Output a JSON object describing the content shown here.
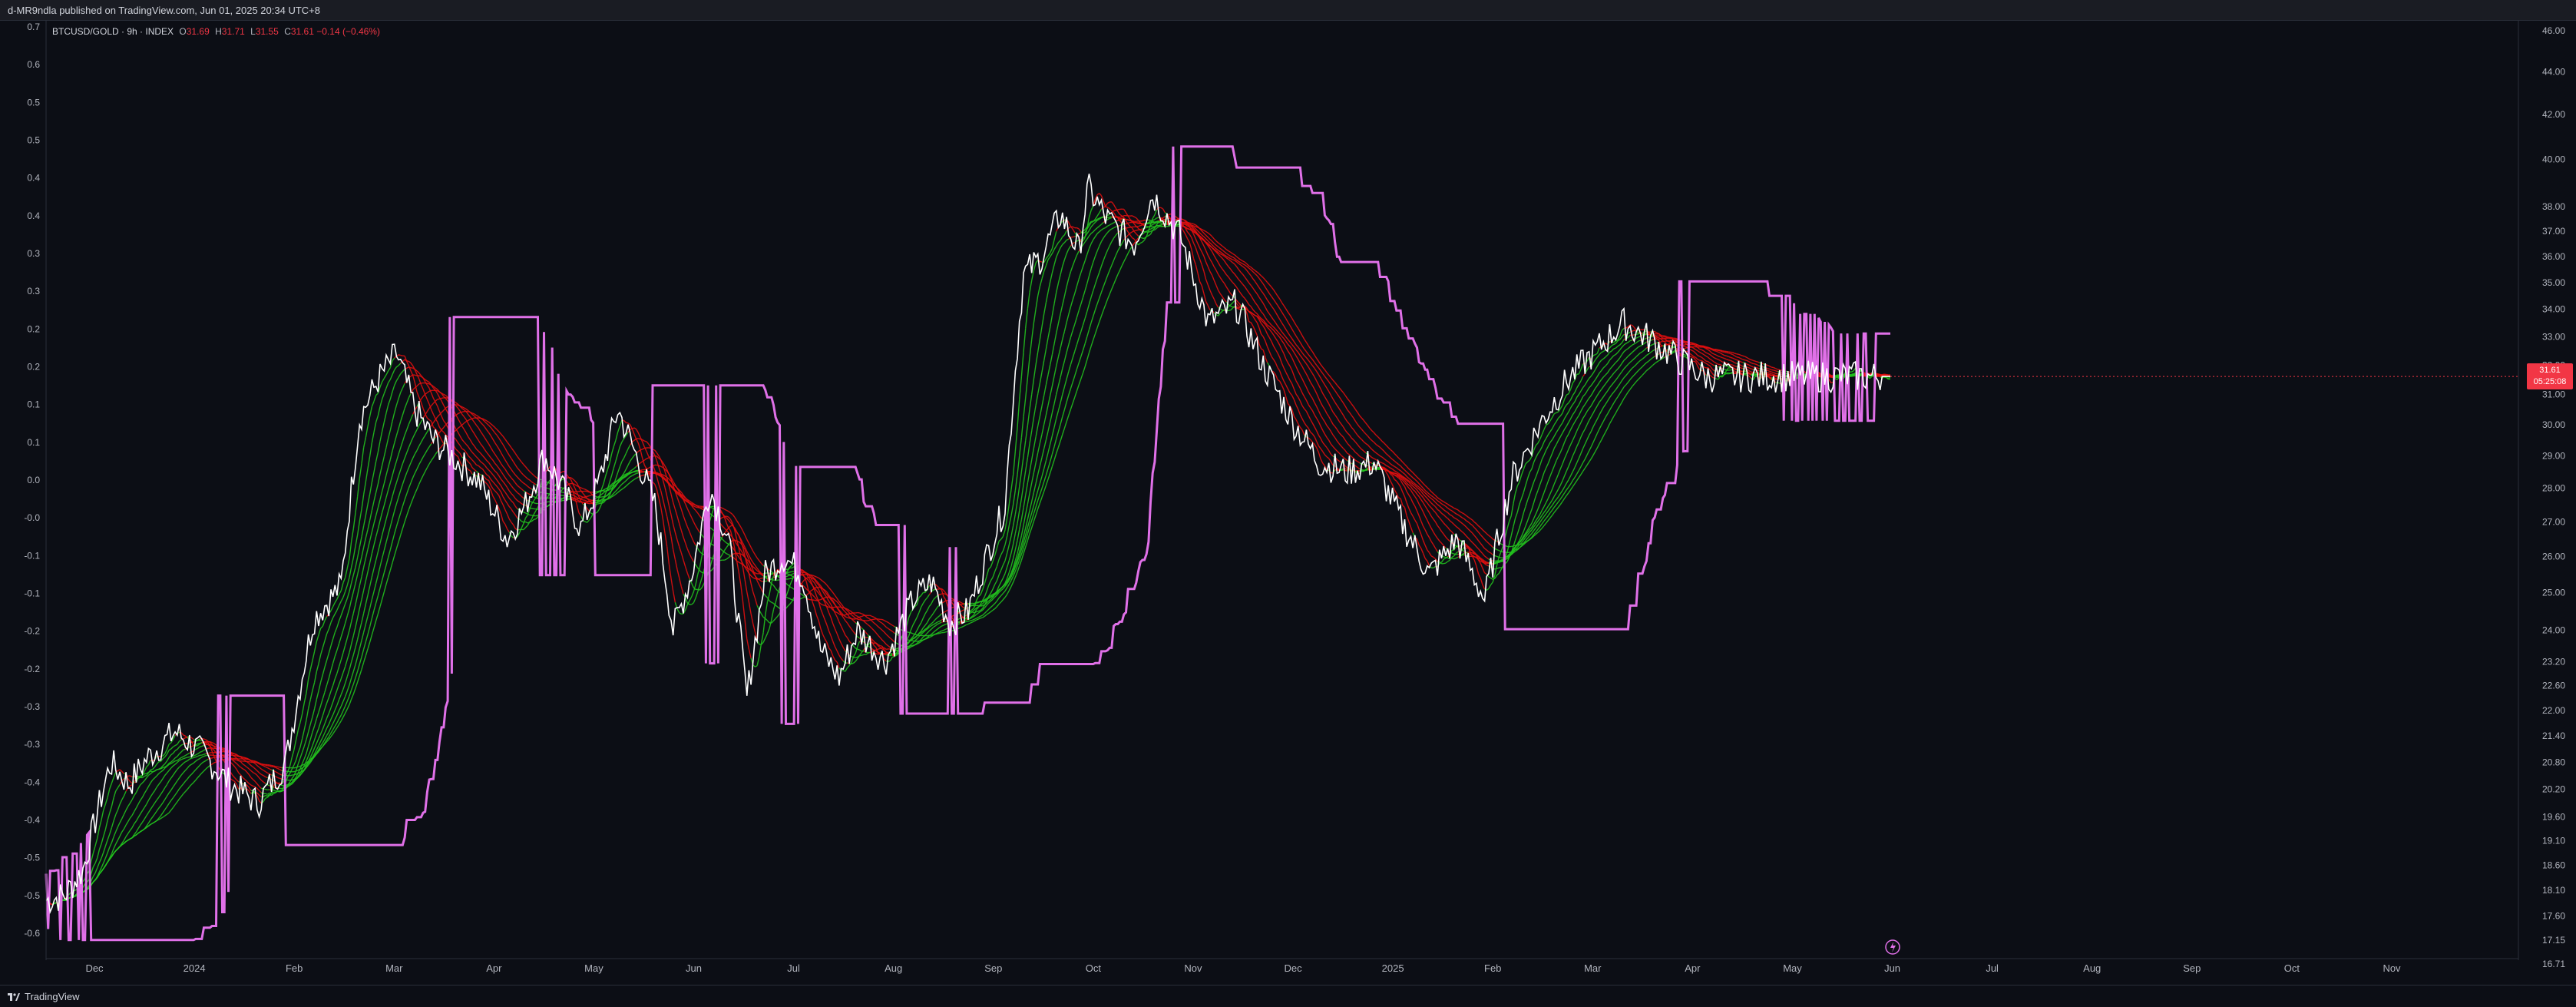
{
  "header": {
    "published": "d-MR9ndla published on TradingView.com, Jun 01, 2025 20:34 UTC+8"
  },
  "legend": {
    "symbol": "BTCUSD/GOLD · 9h · INDEX",
    "open_label": "O",
    "open": "31.69",
    "high_label": "H",
    "high": "31.71",
    "low_label": "L",
    "low": "31.55",
    "close_label": "C",
    "close": "31.61",
    "change": "−0.14 (−0.46%)"
  },
  "price_tag": {
    "price": "31.61",
    "countdown": "05:25:08"
  },
  "footer": {
    "brand": "TradingView"
  },
  "colors": {
    "background": "#0c0e15",
    "up": "#22c01e",
    "down": "#e01010",
    "price": "#ffffff",
    "band": "#e070e8",
    "tag": "#f23645"
  },
  "chart_data": {
    "type": "line",
    "title": "BTCUSD/GOLD · 9h · INDEX",
    "x_ticks": [
      "Dec",
      "2024",
      "Feb",
      "Mar",
      "Apr",
      "May",
      "Jun",
      "Jul",
      "Aug",
      "Sep",
      "Oct",
      "Nov",
      "Dec",
      "2025",
      "Feb",
      "Mar",
      "Apr",
      "May",
      "Jun",
      "Jul",
      "Aug",
      "Sep",
      "Oct",
      "Nov"
    ],
    "left_axis_ticks": [
      "0.7",
      "0.6",
      "0.5",
      "0.5",
      "0.4",
      "0.4",
      "0.3",
      "0.3",
      "0.2",
      "0.2",
      "0.1",
      "0.1",
      "0.0",
      "-0.0",
      "-0.1",
      "-0.1",
      "-0.2",
      "-0.2",
      "-0.3",
      "-0.3",
      "-0.4",
      "-0.4",
      "-0.5",
      "-0.5",
      "-0.6"
    ],
    "right_axis_ticks": [
      "46.00",
      "44.00",
      "42.00",
      "40.00",
      "38.00",
      "37.00",
      "36.00",
      "35.00",
      "34.00",
      "33.00",
      "32.00",
      "31.00",
      "30.00",
      "29.00",
      "28.00",
      "27.00",
      "26.00",
      "25.00",
      "24.00",
      "23.20",
      "22.60",
      "22.00",
      "21.40",
      "20.80",
      "20.20",
      "19.60",
      "19.10",
      "18.60",
      "18.10",
      "17.60",
      "17.15",
      "16.71"
    ],
    "log_scale": true,
    "grid": false,
    "series": [
      {
        "kind": "price",
        "x": [
          0,
          0.01,
          0.02,
          0.035,
          0.045,
          0.055,
          0.07,
          0.085,
          0.1,
          0.115,
          0.13,
          0.145,
          0.16,
          0.17,
          0.18,
          0.19,
          0.2,
          0.21,
          0.22,
          0.235,
          0.25,
          0.26,
          0.27,
          0.28,
          0.29,
          0.3,
          0.31,
          0.32,
          0.33,
          0.34,
          0.35,
          0.36,
          0.37,
          0.38,
          0.39,
          0.4,
          0.41,
          0.42,
          0.43,
          0.44,
          0.455,
          0.47,
          0.48,
          0.49,
          0.5,
          0.51,
          0.52,
          0.53,
          0.54,
          0.55,
          0.56,
          0.565,
          0.575,
          0.59,
          0.6,
          0.615,
          0.63,
          0.645,
          0.66,
          0.675,
          0.69,
          0.705,
          0.72,
          0.735,
          0.75,
          0.765,
          0.78,
          0.795,
          0.81,
          0.825,
          0.84,
          0.855,
          0.87,
          0.885,
          0.9,
          0.915,
          0.93,
          0.945,
          0.96,
          0.975,
          0.99,
          1.0
        ],
        "y": [
          17.9,
          18.0,
          18.5,
          20.8,
          20.3,
          20.9,
          21.5,
          21.0,
          20.3,
          19.9,
          20.8,
          24.3,
          25.2,
          30.2,
          31.5,
          32.4,
          30.5,
          29.5,
          29.0,
          28.2,
          26.5,
          27.5,
          29.0,
          28.0,
          26.8,
          28.2,
          30.5,
          29.0,
          27.5,
          24.0,
          25.5,
          28.0,
          26.5,
          22.3,
          25.5,
          26.0,
          25.5,
          23.5,
          22.8,
          24.0,
          23.2,
          24.8,
          25.3,
          24.2,
          24.5,
          26.0,
          27.5,
          35.3,
          36.0,
          37.7,
          36.2,
          38.8,
          37.5,
          36.5,
          38.5,
          36.8,
          33.5,
          34.2,
          32.0,
          30.2,
          28.8,
          28.5,
          28.8,
          27.0,
          25.5,
          26.5,
          24.8,
          28.3,
          30.0,
          31.5,
          32.5,
          33.5,
          32.9,
          32.2,
          31.61,
          31.61,
          31.61,
          31.61,
          31.61,
          31.61,
          31.61,
          31.61
        ]
      }
    ]
  }
}
